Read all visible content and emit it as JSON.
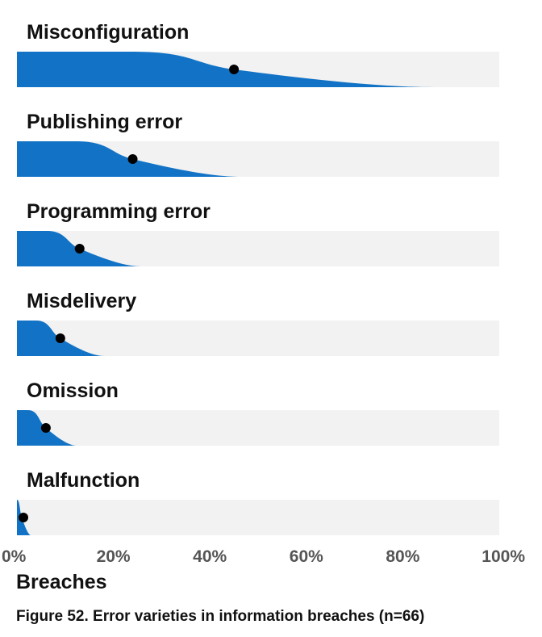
{
  "chart_data": {
    "type": "area",
    "subtype": "slanted-bar-distribution",
    "categories": [
      "Misconfiguration",
      "Publishing error",
      "Programming error",
      "Misdelivery",
      "Omission",
      "Malfunction"
    ],
    "values": [
      45,
      24,
      13,
      9,
      6,
      1
    ],
    "unit": "%",
    "xlabel": "Breaches",
    "x_ticks": [
      "0%",
      "20%",
      "40%",
      "60%",
      "80%",
      "100%"
    ],
    "xlim": [
      0,
      100
    ],
    "caption": "Figure 52. Error varieties in information breaches (n=66)",
    "colors": {
      "fill": "#1273c6",
      "track": "#f2f2f2",
      "point": "#000000"
    }
  }
}
